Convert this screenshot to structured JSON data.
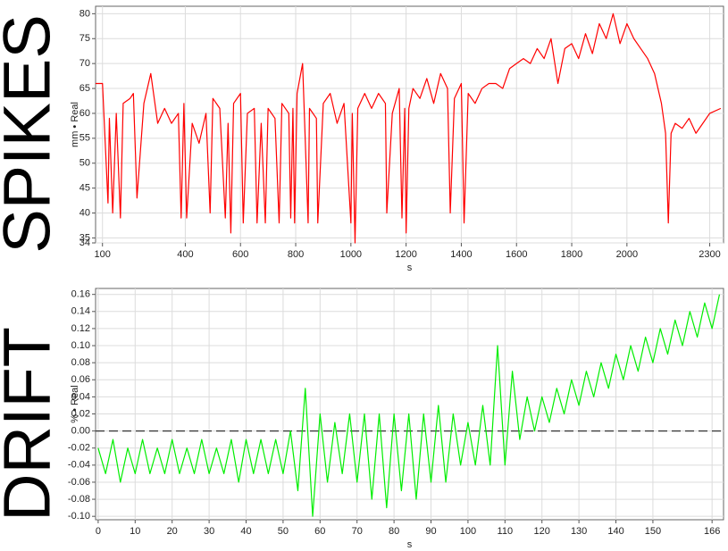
{
  "chart_data": [
    {
      "type": "line",
      "side_label": "SPIKES",
      "x_label": "s",
      "y_label": "mm • Real",
      "xlim": [
        75,
        2350
      ],
      "ylim": [
        34,
        81.5
      ],
      "xticks": [
        100,
        400,
        600,
        800,
        1000,
        1200,
        1400,
        1600,
        1800,
        2000,
        2300
      ],
      "yticks": [
        34,
        35,
        40,
        45,
        50,
        55,
        60,
        65,
        70,
        75,
        80
      ],
      "grid": true,
      "x": [
        75,
        100,
        120,
        125,
        137,
        150,
        165,
        175,
        200,
        212,
        225,
        250,
        275,
        300,
        325,
        350,
        375,
        385,
        395,
        405,
        425,
        450,
        475,
        490,
        500,
        525,
        545,
        555,
        565,
        575,
        600,
        610,
        625,
        650,
        660,
        675,
        690,
        700,
        725,
        740,
        750,
        775,
        782,
        790,
        796,
        805,
        825,
        845,
        850,
        875,
        880,
        900,
        925,
        950,
        975,
        1000,
        1005,
        1015,
        1025,
        1050,
        1075,
        1100,
        1125,
        1130,
        1150,
        1175,
        1185,
        1195,
        1200,
        1210,
        1225,
        1250,
        1275,
        1300,
        1325,
        1350,
        1360,
        1375,
        1400,
        1410,
        1425,
        1450,
        1475,
        1500,
        1525,
        1550,
        1575,
        1600,
        1625,
        1650,
        1675,
        1700,
        1725,
        1750,
        1775,
        1800,
        1825,
        1850,
        1875,
        1900,
        1925,
        1950,
        1975,
        2000,
        2025,
        2050,
        2075,
        2100,
        2125,
        2140,
        2150,
        2160,
        2175,
        2200,
        2225,
        2250,
        2275,
        2300,
        2340
      ],
      "series": [
        {
          "name": "mm • Real",
          "color": "#ff0000",
          "values": [
            66,
            66,
            42,
            59,
            40,
            60,
            39,
            62,
            63,
            64,
            43,
            62,
            68,
            58,
            61,
            58,
            60,
            39,
            62,
            39,
            58,
            54,
            60,
            40,
            63,
            61,
            39,
            58,
            36,
            62,
            64,
            38,
            60,
            61,
            38,
            58,
            38,
            61,
            59,
            38,
            62,
            60,
            39,
            61,
            38,
            64,
            70,
            38,
            61,
            59,
            38,
            62,
            64,
            58,
            62,
            38,
            60,
            34,
            61,
            64,
            61,
            64,
            62,
            40,
            60,
            65,
            39,
            61,
            36,
            61,
            65,
            63,
            67,
            62,
            68,
            65,
            40,
            63,
            66,
            38,
            64,
            62,
            65,
            66,
            66,
            65,
            69,
            70,
            71,
            70,
            73,
            71,
            75,
            66,
            73,
            74,
            71,
            76,
            72,
            78,
            75,
            80,
            74,
            78,
            75,
            73,
            71,
            68,
            62,
            56,
            38,
            56,
            58,
            57,
            59,
            56,
            58,
            60,
            61
          ]
        }
      ]
    },
    {
      "type": "line",
      "side_label": "DRIFT",
      "x_label": "s",
      "y_label": "% • Real",
      "xlim": [
        -0.7,
        169.1
      ],
      "ylim": [
        -0.104,
        0.167
      ],
      "xticks": [
        0,
        10,
        20,
        30,
        40,
        50,
        60,
        70,
        80,
        90,
        100,
        110,
        120,
        130,
        140,
        150,
        166
      ],
      "yticks": [
        {
          "value": -0.1,
          "label": "-0.10"
        },
        -0.08,
        -0.06,
        -0.04,
        -0.02,
        {
          "value": 0,
          "label": "0.00"
        },
        0.02,
        0.04,
        0.06,
        0.08,
        {
          "value": 0.1,
          "label": "0.10"
        },
        0.12,
        0.14,
        0.16
      ],
      "grid": true,
      "reference_line": {
        "value": 0,
        "style": "dashed"
      },
      "x": [
        0,
        2,
        4,
        6,
        8,
        10,
        12,
        14,
        16,
        18,
        20,
        22,
        24,
        26,
        28,
        30,
        32,
        34,
        36,
        38,
        40,
        42,
        44,
        46,
        48,
        50,
        52,
        54,
        56,
        58,
        60,
        62,
        64,
        66,
        68,
        70,
        72,
        74,
        76,
        78,
        80,
        82,
        84,
        86,
        88,
        90,
        92,
        94,
        96,
        98,
        100,
        102,
        104,
        106,
        108,
        110,
        112,
        114,
        116,
        118,
        120,
        122,
        124,
        126,
        128,
        130,
        132,
        134,
        136,
        138,
        140,
        142,
        144,
        146,
        148,
        150,
        152,
        154,
        156,
        158,
        160,
        162,
        164,
        166,
        168
      ],
      "series": [
        {
          "name": "% • Real",
          "color": "#00ee00",
          "values": [
            -0.02,
            -0.05,
            -0.01,
            -0.06,
            -0.02,
            -0.05,
            -0.01,
            -0.05,
            -0.02,
            -0.05,
            -0.01,
            -0.05,
            -0.02,
            -0.05,
            -0.01,
            -0.05,
            -0.02,
            -0.05,
            -0.01,
            -0.06,
            -0.01,
            -0.05,
            -0.01,
            -0.05,
            -0.01,
            -0.05,
            0.0,
            -0.07,
            0.05,
            -0.1,
            0.02,
            -0.06,
            0.01,
            -0.05,
            0.02,
            -0.06,
            0.02,
            -0.08,
            0.02,
            -0.09,
            0.02,
            -0.07,
            0.02,
            -0.08,
            0.02,
            -0.06,
            0.03,
            -0.06,
            0.02,
            -0.04,
            0.01,
            -0.04,
            0.03,
            -0.04,
            0.1,
            -0.04,
            0.07,
            -0.01,
            0.04,
            0.0,
            0.04,
            0.01,
            0.05,
            0.02,
            0.06,
            0.03,
            0.07,
            0.04,
            0.08,
            0.05,
            0.09,
            0.06,
            0.1,
            0.07,
            0.11,
            0.08,
            0.12,
            0.09,
            0.13,
            0.1,
            0.14,
            0.11,
            0.15,
            0.12,
            0.16
          ]
        }
      ]
    }
  ]
}
